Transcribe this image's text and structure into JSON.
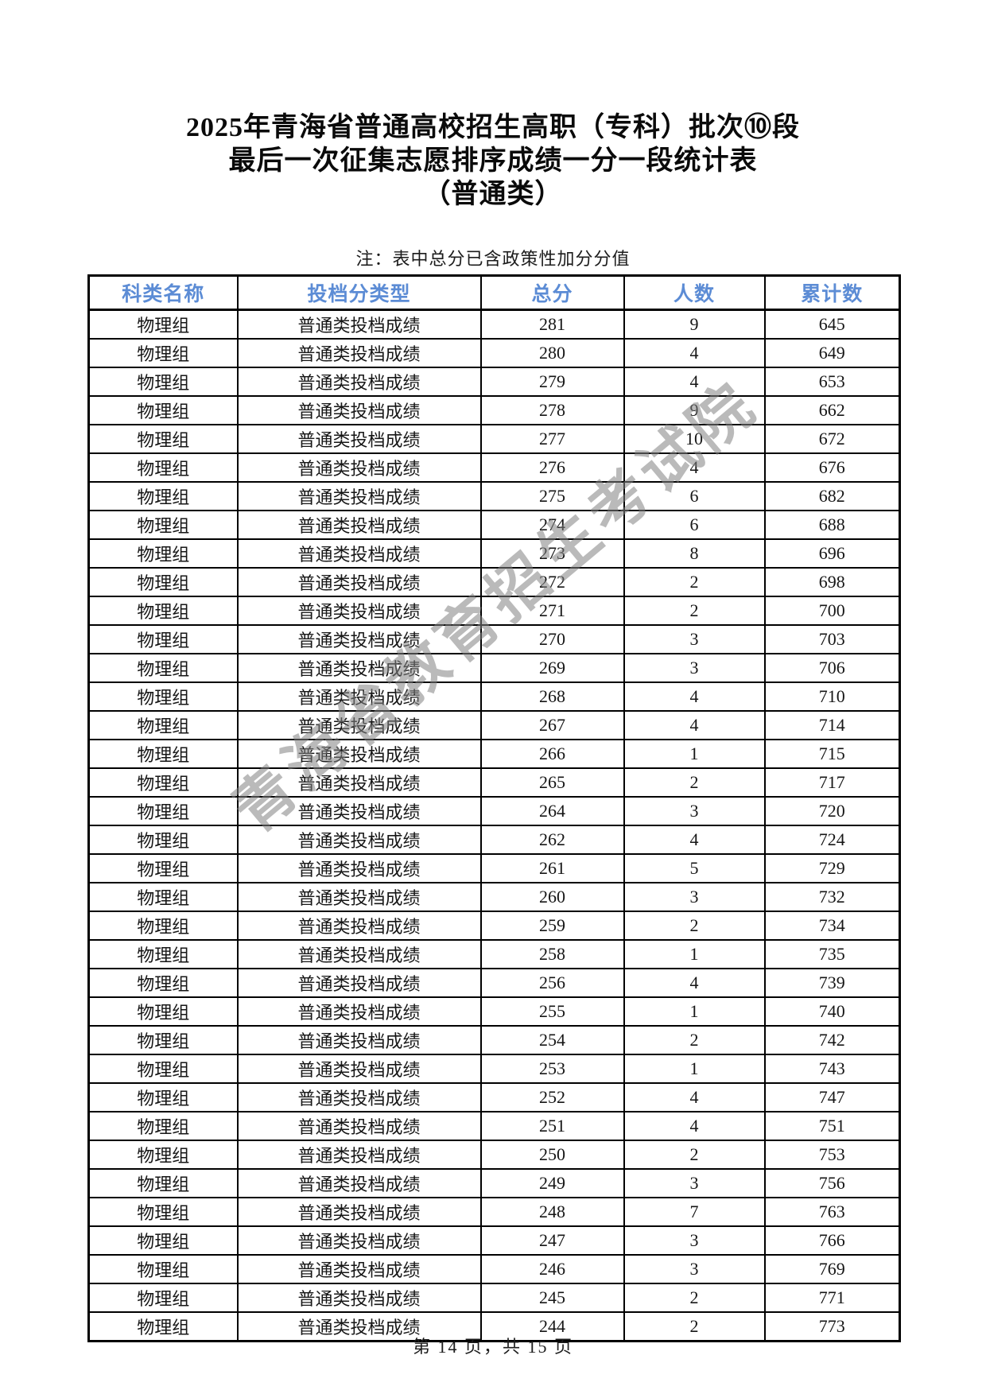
{
  "title": {
    "lines": [
      "2025年青海省普通高校招生高职（专科）批次⑩段",
      "最后一次征集志愿排序成绩一分一段统计表",
      "（普通类）"
    ]
  },
  "note": "注：表中总分已含政策性加分分值",
  "watermark": "青海省教育招生考试院",
  "table": {
    "headers": [
      "科类名称",
      "投档分类型",
      "总分",
      "人数",
      "累计数"
    ],
    "rows": [
      {
        "category": "物理组",
        "type": "普通类投档成绩",
        "score": "281",
        "count": "9",
        "cumulative": "645"
      },
      {
        "category": "物理组",
        "type": "普通类投档成绩",
        "score": "280",
        "count": "4",
        "cumulative": "649"
      },
      {
        "category": "物理组",
        "type": "普通类投档成绩",
        "score": "279",
        "count": "4",
        "cumulative": "653"
      },
      {
        "category": "物理组",
        "type": "普通类投档成绩",
        "score": "278",
        "count": "9",
        "cumulative": "662"
      },
      {
        "category": "物理组",
        "type": "普通类投档成绩",
        "score": "277",
        "count": "10",
        "cumulative": "672"
      },
      {
        "category": "物理组",
        "type": "普通类投档成绩",
        "score": "276",
        "count": "4",
        "cumulative": "676"
      },
      {
        "category": "物理组",
        "type": "普通类投档成绩",
        "score": "275",
        "count": "6",
        "cumulative": "682"
      },
      {
        "category": "物理组",
        "type": "普通类投档成绩",
        "score": "274",
        "count": "6",
        "cumulative": "688"
      },
      {
        "category": "物理组",
        "type": "普通类投档成绩",
        "score": "273",
        "count": "8",
        "cumulative": "696"
      },
      {
        "category": "物理组",
        "type": "普通类投档成绩",
        "score": "272",
        "count": "2",
        "cumulative": "698"
      },
      {
        "category": "物理组",
        "type": "普通类投档成绩",
        "score": "271",
        "count": "2",
        "cumulative": "700"
      },
      {
        "category": "物理组",
        "type": "普通类投档成绩",
        "score": "270",
        "count": "3",
        "cumulative": "703"
      },
      {
        "category": "物理组",
        "type": "普通类投档成绩",
        "score": "269",
        "count": "3",
        "cumulative": "706"
      },
      {
        "category": "物理组",
        "type": "普通类投档成绩",
        "score": "268",
        "count": "4",
        "cumulative": "710"
      },
      {
        "category": "物理组",
        "type": "普通类投档成绩",
        "score": "267",
        "count": "4",
        "cumulative": "714"
      },
      {
        "category": "物理组",
        "type": "普通类投档成绩",
        "score": "266",
        "count": "1",
        "cumulative": "715"
      },
      {
        "category": "物理组",
        "type": "普通类投档成绩",
        "score": "265",
        "count": "2",
        "cumulative": "717"
      },
      {
        "category": "物理组",
        "type": "普通类投档成绩",
        "score": "264",
        "count": "3",
        "cumulative": "720"
      },
      {
        "category": "物理组",
        "type": "普通类投档成绩",
        "score": "262",
        "count": "4",
        "cumulative": "724"
      },
      {
        "category": "物理组",
        "type": "普通类投档成绩",
        "score": "261",
        "count": "5",
        "cumulative": "729"
      },
      {
        "category": "物理组",
        "type": "普通类投档成绩",
        "score": "260",
        "count": "3",
        "cumulative": "732"
      },
      {
        "category": "物理组",
        "type": "普通类投档成绩",
        "score": "259",
        "count": "2",
        "cumulative": "734"
      },
      {
        "category": "物理组",
        "type": "普通类投档成绩",
        "score": "258",
        "count": "1",
        "cumulative": "735"
      },
      {
        "category": "物理组",
        "type": "普通类投档成绩",
        "score": "256",
        "count": "4",
        "cumulative": "739"
      },
      {
        "category": "物理组",
        "type": "普通类投档成绩",
        "score": "255",
        "count": "1",
        "cumulative": "740"
      },
      {
        "category": "物理组",
        "type": "普通类投档成绩",
        "score": "254",
        "count": "2",
        "cumulative": "742"
      },
      {
        "category": "物理组",
        "type": "普通类投档成绩",
        "score": "253",
        "count": "1",
        "cumulative": "743"
      },
      {
        "category": "物理组",
        "type": "普通类投档成绩",
        "score": "252",
        "count": "4",
        "cumulative": "747"
      },
      {
        "category": "物理组",
        "type": "普通类投档成绩",
        "score": "251",
        "count": "4",
        "cumulative": "751"
      },
      {
        "category": "物理组",
        "type": "普通类投档成绩",
        "score": "250",
        "count": "2",
        "cumulative": "753"
      },
      {
        "category": "物理组",
        "type": "普通类投档成绩",
        "score": "249",
        "count": "3",
        "cumulative": "756"
      },
      {
        "category": "物理组",
        "type": "普通类投档成绩",
        "score": "248",
        "count": "7",
        "cumulative": "763"
      },
      {
        "category": "物理组",
        "type": "普通类投档成绩",
        "score": "247",
        "count": "3",
        "cumulative": "766"
      },
      {
        "category": "物理组",
        "type": "普通类投档成绩",
        "score": "246",
        "count": "3",
        "cumulative": "769"
      },
      {
        "category": "物理组",
        "type": "普通类投档成绩",
        "score": "245",
        "count": "2",
        "cumulative": "771"
      },
      {
        "category": "物理组",
        "type": "普通类投档成绩",
        "score": "244",
        "count": "2",
        "cumulative": "773"
      }
    ]
  },
  "footer": "第 14 页，共 15 页",
  "colors": {
    "header_text": "#5C8CD5",
    "body_text": "#161616",
    "border": "#000000",
    "watermark": "#828282"
  }
}
